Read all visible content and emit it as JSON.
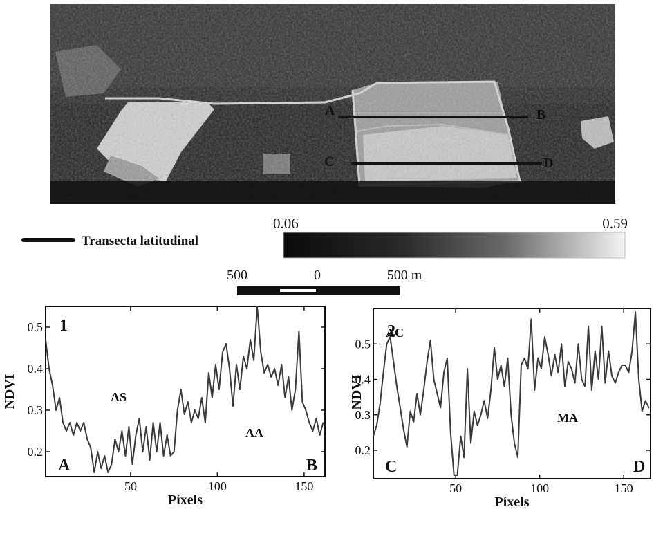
{
  "map": {
    "transect_labels": [
      "A",
      "B",
      "C",
      "D"
    ],
    "legend_label": "Transecta latitudinal",
    "colorbar": {
      "min_label": "0.06",
      "max_label": "0.59"
    },
    "scale_bar": {
      "left": "500",
      "center": "0",
      "right": "500 m"
    }
  },
  "chart_data": [
    {
      "type": "line",
      "panel_label": "1",
      "title": "",
      "xlabel": "Píxels",
      "ylabel": "NDVI",
      "xlim": [
        1,
        162
      ],
      "ylim": [
        0.14,
        0.55
      ],
      "xticks": [
        50,
        100,
        150
      ],
      "yticks": [
        0.2,
        0.3,
        0.4,
        0.5
      ],
      "ytick_labels": [
        "0.2",
        "0.3",
        "0.4",
        "0.5"
      ],
      "annotations": [
        "AS",
        "AA",
        "A",
        "B"
      ],
      "series": [
        {
          "x": [
            1,
            3,
            5,
            7,
            9,
            11,
            13,
            15,
            17,
            19,
            21,
            23,
            25,
            27,
            29,
            31,
            33,
            35,
            37,
            39,
            41,
            43,
            45,
            47,
            49,
            51,
            53,
            55,
            57,
            59,
            61,
            63,
            65,
            67,
            69,
            71,
            73,
            75,
            77,
            79,
            81,
            83,
            85,
            87,
            89,
            91,
            93,
            95,
            97,
            99,
            101,
            103,
            105,
            107,
            109,
            111,
            113,
            115,
            117,
            119,
            121,
            123,
            125,
            127,
            129,
            131,
            133,
            135,
            137,
            139,
            141,
            143,
            145,
            147,
            149,
            151,
            153,
            155,
            157,
            159,
            161
          ],
          "y": [
            0.47,
            0.4,
            0.36,
            0.3,
            0.33,
            0.27,
            0.25,
            0.27,
            0.24,
            0.27,
            0.25,
            0.27,
            0.23,
            0.21,
            0.15,
            0.2,
            0.16,
            0.19,
            0.15,
            0.17,
            0.23,
            0.2,
            0.25,
            0.19,
            0.26,
            0.17,
            0.24,
            0.28,
            0.2,
            0.26,
            0.18,
            0.27,
            0.2,
            0.27,
            0.19,
            0.24,
            0.19,
            0.2,
            0.3,
            0.35,
            0.29,
            0.32,
            0.27,
            0.3,
            0.28,
            0.33,
            0.27,
            0.39,
            0.33,
            0.41,
            0.35,
            0.44,
            0.46,
            0.4,
            0.31,
            0.41,
            0.35,
            0.43,
            0.4,
            0.47,
            0.42,
            0.55,
            0.44,
            0.39,
            0.41,
            0.38,
            0.4,
            0.36,
            0.41,
            0.33,
            0.38,
            0.3,
            0.35,
            0.49,
            0.32,
            0.3,
            0.27,
            0.25,
            0.28,
            0.24,
            0.27
          ]
        }
      ]
    },
    {
      "type": "line",
      "panel_label": "2",
      "title": "",
      "xlabel": "Píxels",
      "ylabel": "NDVI",
      "xlim": [
        1,
        166
      ],
      "ylim": [
        0.12,
        0.6
      ],
      "xticks": [
        50,
        100,
        150
      ],
      "yticks": [
        0.2,
        0.3,
        0.4,
        0.5
      ],
      "ytick_labels": [
        "0.2",
        "0.3",
        "0.4",
        "0.5"
      ],
      "annotations": [
        "AC",
        "MA",
        "C",
        "D"
      ],
      "series": [
        {
          "x": [
            1,
            3,
            5,
            7,
            9,
            11,
            13,
            15,
            17,
            19,
            21,
            23,
            25,
            27,
            29,
            31,
            33,
            35,
            37,
            39,
            41,
            43,
            45,
            47,
            49,
            51,
            53,
            55,
            57,
            59,
            61,
            63,
            65,
            67,
            69,
            71,
            73,
            75,
            77,
            79,
            81,
            83,
            85,
            87,
            89,
            91,
            93,
            95,
            97,
            99,
            101,
            103,
            105,
            107,
            109,
            111,
            113,
            115,
            117,
            119,
            121,
            123,
            125,
            127,
            129,
            131,
            133,
            135,
            137,
            139,
            141,
            143,
            145,
            147,
            149,
            151,
            153,
            155,
            157,
            159,
            161,
            163,
            165
          ],
          "y": [
            0.24,
            0.27,
            0.33,
            0.42,
            0.5,
            0.52,
            0.45,
            0.38,
            0.32,
            0.26,
            0.21,
            0.31,
            0.28,
            0.36,
            0.3,
            0.37,
            0.45,
            0.51,
            0.4,
            0.36,
            0.32,
            0.42,
            0.46,
            0.25,
            0.13,
            0.13,
            0.24,
            0.18,
            0.43,
            0.22,
            0.31,
            0.27,
            0.3,
            0.34,
            0.29,
            0.37,
            0.49,
            0.4,
            0.44,
            0.38,
            0.46,
            0.3,
            0.22,
            0.18,
            0.44,
            0.46,
            0.43,
            0.57,
            0.37,
            0.46,
            0.43,
            0.52,
            0.47,
            0.41,
            0.47,
            0.42,
            0.5,
            0.38,
            0.45,
            0.43,
            0.39,
            0.5,
            0.4,
            0.38,
            0.55,
            0.37,
            0.48,
            0.4,
            0.55,
            0.39,
            0.48,
            0.41,
            0.39,
            0.42,
            0.44,
            0.44,
            0.42,
            0.48,
            0.59,
            0.4,
            0.31,
            0.34,
            0.32
          ]
        }
      ]
    }
  ]
}
